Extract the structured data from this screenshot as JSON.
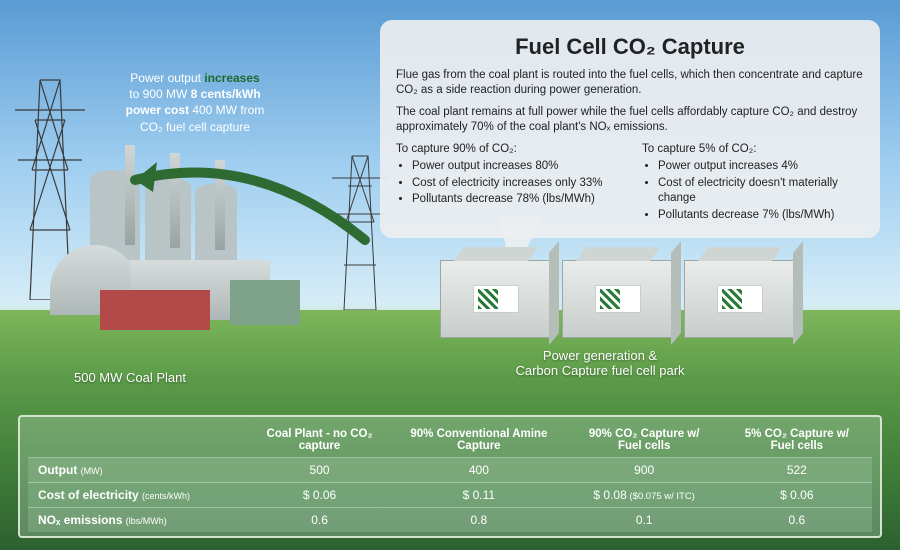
{
  "title": "Fuel Cell CO₂ Capture",
  "paragraphs": [
    "Flue gas from the coal plant is routed into the fuel cells, which then concentrate and capture CO₂ as a side reaction during power generation.",
    "The coal plant remains at full power while the fuel cells affordably capture CO₂ and destroy approximately 70% of the coal plant's NOₓ emissions."
  ],
  "columns": [
    {
      "title": "To capture 90% of CO₂:",
      "bullets": [
        "Power output increases 80%",
        "Cost of electricity increases only 33%",
        "Pollutants decrease 78% (lbs/MWh)"
      ]
    },
    {
      "title": "To capture 5% of CO₂:",
      "bullets": [
        "Power output increases 4%",
        "Cost of electricity doesn't materially change",
        "Pollutants decrease 7% (lbs/MWh)"
      ]
    }
  ],
  "left_callout": {
    "l1a": "Power output ",
    "l1b": "increases",
    "l2a": "to 900 MW ",
    "l2b": "8 cents/kWh",
    "l3a": "power cost ",
    "l3b": "400 MW from",
    "l4": "CO₂ fuel cell capture"
  },
  "scene_labels": {
    "coal_plant": "500 MW Coal Plant",
    "fuelcell_line1": "Power generation &",
    "fuelcell_line2": "Carbon Capture fuel cell park"
  },
  "table": {
    "headers": [
      "",
      "Coal Plant - no CO₂ capture",
      "90% Conventional Amine Capture",
      "90% CO₂ Capture w/ Fuel cells",
      "5% CO₂ Capture w/ Fuel cells"
    ],
    "rows": [
      {
        "label": "Output",
        "unit": "(MW)",
        "cells": [
          "500",
          "400",
          "900",
          "522"
        ]
      },
      {
        "label": "Cost of electricity",
        "unit": "(cents/kWh)",
        "cells": [
          "$ 0.06",
          "$ 0.11",
          "$ 0.08",
          "$ 0.06"
        ],
        "note_col": 2,
        "note": "($0.075 w/ ITC)"
      },
      {
        "label": "NOₓ emissions",
        "unit": "(lbs/MWh)",
        "cells": [
          "0.6",
          "0.8",
          "0.1",
          "0.6"
        ]
      }
    ]
  },
  "colors": {
    "accent_green": "#1d6a2c",
    "box_bg": "rgba(235,238,240,0.92)"
  }
}
